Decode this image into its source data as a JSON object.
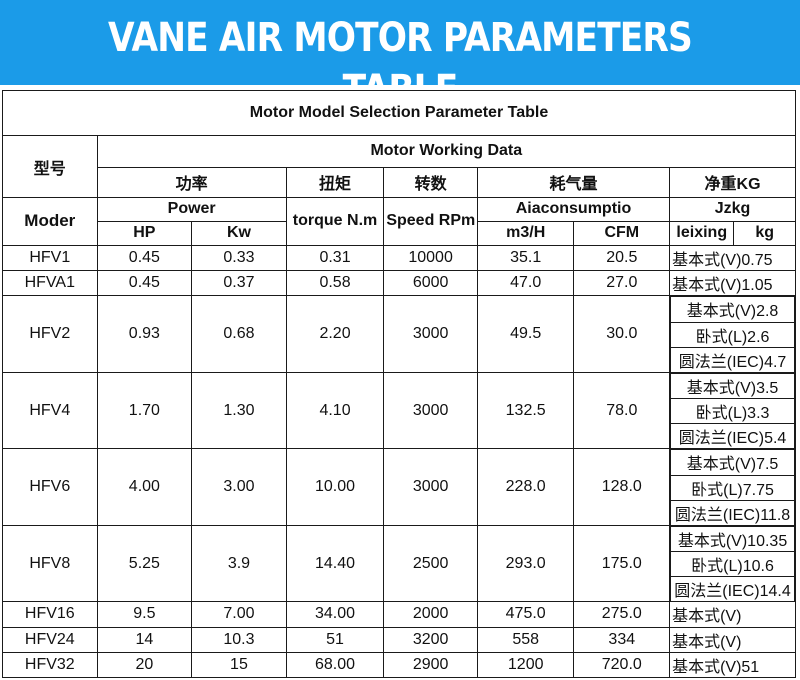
{
  "banner_title": "VANE AIR MOTOR PARAMETERS TABLE",
  "table_title": "Motor Model Selection Parameter Table",
  "headers": {
    "model_cn": "型号",
    "model_en": "Moder",
    "working_data": "Motor Working Data",
    "power_cn": "功率",
    "power_en": "Power",
    "hp": "HP",
    "kw": "Kw",
    "torque_cn": "扭矩",
    "torque_en": "torque N.m",
    "speed_cn": "转数",
    "speed_en": "Speed RPm",
    "air_cn": "耗气量",
    "air_en": "Aiaconsumptio",
    "m3h": "m3/H",
    "cfm": "CFM",
    "weight_cn": "净重KG",
    "weight_en": "Jzkg",
    "leixing": "leixing",
    "kg": "kg"
  },
  "rows": [
    {
      "model": "HFV1",
      "hp": "0.45",
      "kw": "0.33",
      "torque": "0.31",
      "speed": "10000",
      "m3h": "35.1",
      "cfm": "20.5",
      "weights": [
        "基本式(V)0.75"
      ]
    },
    {
      "model": "HFVA1",
      "hp": "0.45",
      "kw": "0.37",
      "torque": "0.58",
      "speed": "6000",
      "m3h": "47.0",
      "cfm": "27.0",
      "weights": [
        "基本式(V)1.05"
      ]
    },
    {
      "model": "HFV2",
      "hp": "0.93",
      "kw": "0.68",
      "torque": "2.20",
      "speed": "3000",
      "m3h": "49.5",
      "cfm": "30.0",
      "weights": [
        "基本式(V)2.8",
        "卧式(L)2.6",
        "圆法兰(IEC)4.7"
      ]
    },
    {
      "model": "HFV4",
      "hp": "1.70",
      "kw": "1.30",
      "torque": "4.10",
      "speed": "3000",
      "m3h": "132.5",
      "cfm": "78.0",
      "weights": [
        "基本式(V)3.5",
        "卧式(L)3.3",
        "圆法兰(IEC)5.4"
      ]
    },
    {
      "model": "HFV6",
      "hp": "4.00",
      "kw": "3.00",
      "torque": "10.00",
      "speed": "3000",
      "m3h": "228.0",
      "cfm": "128.0",
      "weights": [
        "基本式(V)7.5",
        "卧式(L)7.75",
        "圆法兰(IEC)11.8"
      ]
    },
    {
      "model": "HFV8",
      "hp": "5.25",
      "kw": "3.9",
      "torque": "14.40",
      "speed": "2500",
      "m3h": "293.0",
      "cfm": "175.0",
      "weights": [
        "基本式(V)10.35",
        "卧式(L)10.6",
        "圆法兰(IEC)14.4"
      ]
    },
    {
      "model": "HFV16",
      "hp": "9.5",
      "kw": "7.00",
      "torque": "34.00",
      "speed": "2000",
      "m3h": "475.0",
      "cfm": "275.0",
      "weights": [
        "基本式(V)"
      ]
    },
    {
      "model": "HFV24",
      "hp": "14",
      "kw": "10.3",
      "torque": "51",
      "speed": "3200",
      "m3h": "558",
      "cfm": "334",
      "weights": [
        "基本式(V)"
      ]
    },
    {
      "model": "HFV32",
      "hp": "20",
      "kw": "15",
      "torque": "68.00",
      "speed": "2900",
      "m3h": "1200",
      "cfm": "720.0",
      "weights": [
        "基本式(V)51"
      ]
    }
  ]
}
